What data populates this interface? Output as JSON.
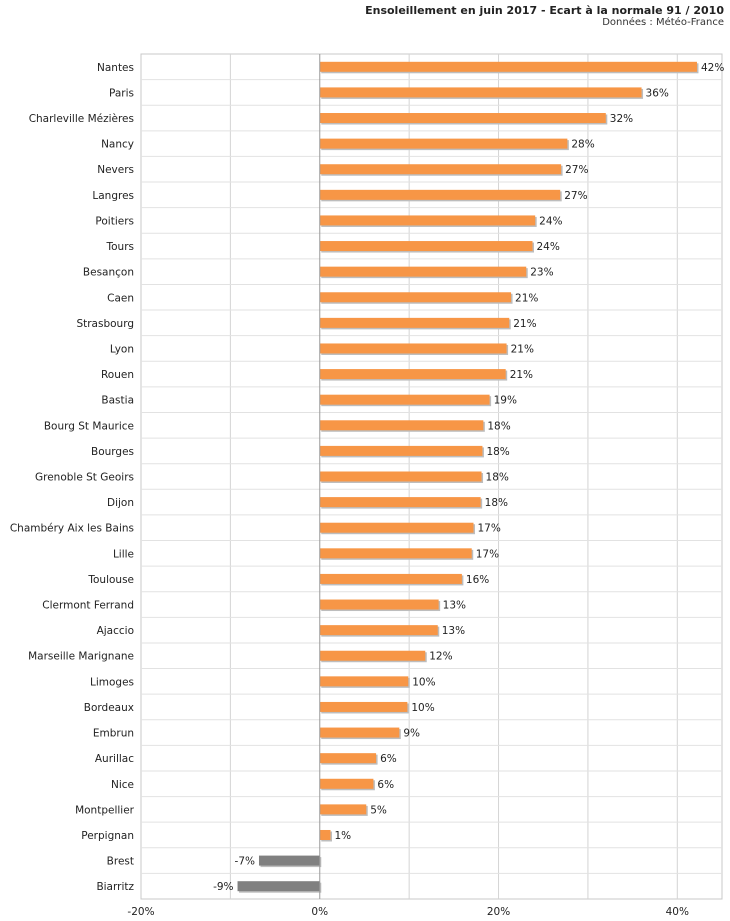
{
  "chart_data": {
    "type": "bar",
    "orientation": "horizontal",
    "title": "Ensoleillement en juin 2017 - Ecart à la normale 91 / 2010",
    "subtitle": "Données : Météo-France",
    "xlim": [
      -20,
      45
    ],
    "xticks": [
      -20,
      0,
      20,
      40
    ],
    "xtick_labels": [
      "-20%",
      "0%",
      "20%",
      "40%"
    ],
    "grid": true,
    "colors": {
      "positive": "#f79646",
      "negative": "#808080"
    },
    "categories": [
      "Nantes",
      "Paris",
      "Charleville Mézières",
      "Nancy",
      "Nevers",
      "Langres",
      "Poitiers",
      "Tours",
      "Besançon",
      "Caen",
      "Strasbourg",
      "Lyon",
      "Rouen",
      "Bastia",
      "Bourg St Maurice",
      "Bourges",
      "Grenoble St Geoirs",
      "Dijon",
      "Chambéry Aix les Bains",
      "Lille",
      "Toulouse",
      "Clermont Ferrand",
      "Ajaccio",
      "Marseille Marignane",
      "Limoges",
      "Bordeaux",
      "Embrun",
      "Aurillac",
      "Nice",
      "Montpellier",
      "Perpignan",
      "Brest",
      "Biarritz"
    ],
    "values": [
      42.2,
      36,
      32,
      27.7,
      27,
      26.9,
      24.1,
      23.8,
      23.1,
      21.4,
      21.2,
      20.9,
      20.8,
      19,
      18.3,
      18.2,
      18.1,
      18,
      17.2,
      17,
      15.9,
      13.3,
      13.2,
      11.8,
      9.9,
      9.8,
      8.9,
      6.3,
      6,
      5.2,
      1.2,
      -6.8,
      -9.2
    ],
    "value_labels": [
      "42%",
      "36%",
      "32%",
      "28%",
      "27%",
      "27%",
      "24%",
      "24%",
      "23%",
      "21%",
      "21%",
      "21%",
      "21%",
      "19%",
      "18%",
      "18%",
      "18%",
      "18%",
      "17%",
      "17%",
      "16%",
      "13%",
      "13%",
      "12%",
      "10%",
      "10%",
      "9%",
      "6%",
      "6%",
      "5%",
      "1%",
      "-7%",
      "-9%"
    ]
  }
}
